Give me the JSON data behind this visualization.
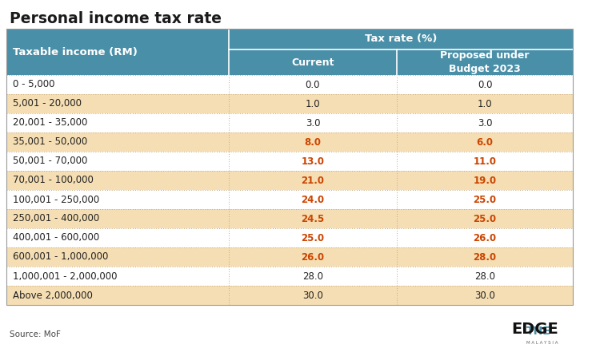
{
  "title": "Personal income tax rate",
  "header_bg": "#4a8fa8",
  "header_text": "#ffffff",
  "row_bg_light": "#ffffff",
  "row_bg_shaded": "#f5deb3",
  "changed_color": "#cc4400",
  "normal_color": "#222222",
  "border_color": "#c8a878",
  "col_header1": "Taxable income (RM)",
  "col_header2": "Tax rate (%)",
  "col_sub1": "Current",
  "col_sub2": "Proposed under\nBudget 2023",
  "rows": [
    {
      "income": "0 - 5,000",
      "current": "0.0",
      "proposed": "0.0",
      "shaded": false,
      "changed": false
    },
    {
      "income": "5,001 - 20,000",
      "current": "1.0",
      "proposed": "1.0",
      "shaded": true,
      "changed": false
    },
    {
      "income": "20,001 - 35,000",
      "current": "3.0",
      "proposed": "3.0",
      "shaded": false,
      "changed": false
    },
    {
      "income": "35,001 - 50,000",
      "current": "8.0",
      "proposed": "6.0",
      "shaded": true,
      "changed": true
    },
    {
      "income": "50,001 - 70,000",
      "current": "13.0",
      "proposed": "11.0",
      "shaded": false,
      "changed": true
    },
    {
      "income": "70,001 - 100,000",
      "current": "21.0",
      "proposed": "19.0",
      "shaded": true,
      "changed": true
    },
    {
      "income": "100,001 - 250,000",
      "current": "24.0",
      "proposed": "25.0",
      "shaded": false,
      "changed": true
    },
    {
      "income": "250,001 - 400,000",
      "current": "24.5",
      "proposed": "25.0",
      "shaded": true,
      "changed": true
    },
    {
      "income": "400,001 - 600,000",
      "current": "25.0",
      "proposed": "26.0",
      "shaded": false,
      "changed": true
    },
    {
      "income": "600,001 - 1,000,000",
      "current": "26.0",
      "proposed": "28.0",
      "shaded": true,
      "changed": true
    },
    {
      "income": "1,000,001 - 2,000,000",
      "current": "28.0",
      "proposed": "28.0",
      "shaded": false,
      "changed": false
    },
    {
      "income": "Above 2,000,000",
      "current": "30.0",
      "proposed": "30.0",
      "shaded": true,
      "changed": false
    }
  ],
  "source_text": "Source: MoF",
  "figure_bg": "#ffffff"
}
